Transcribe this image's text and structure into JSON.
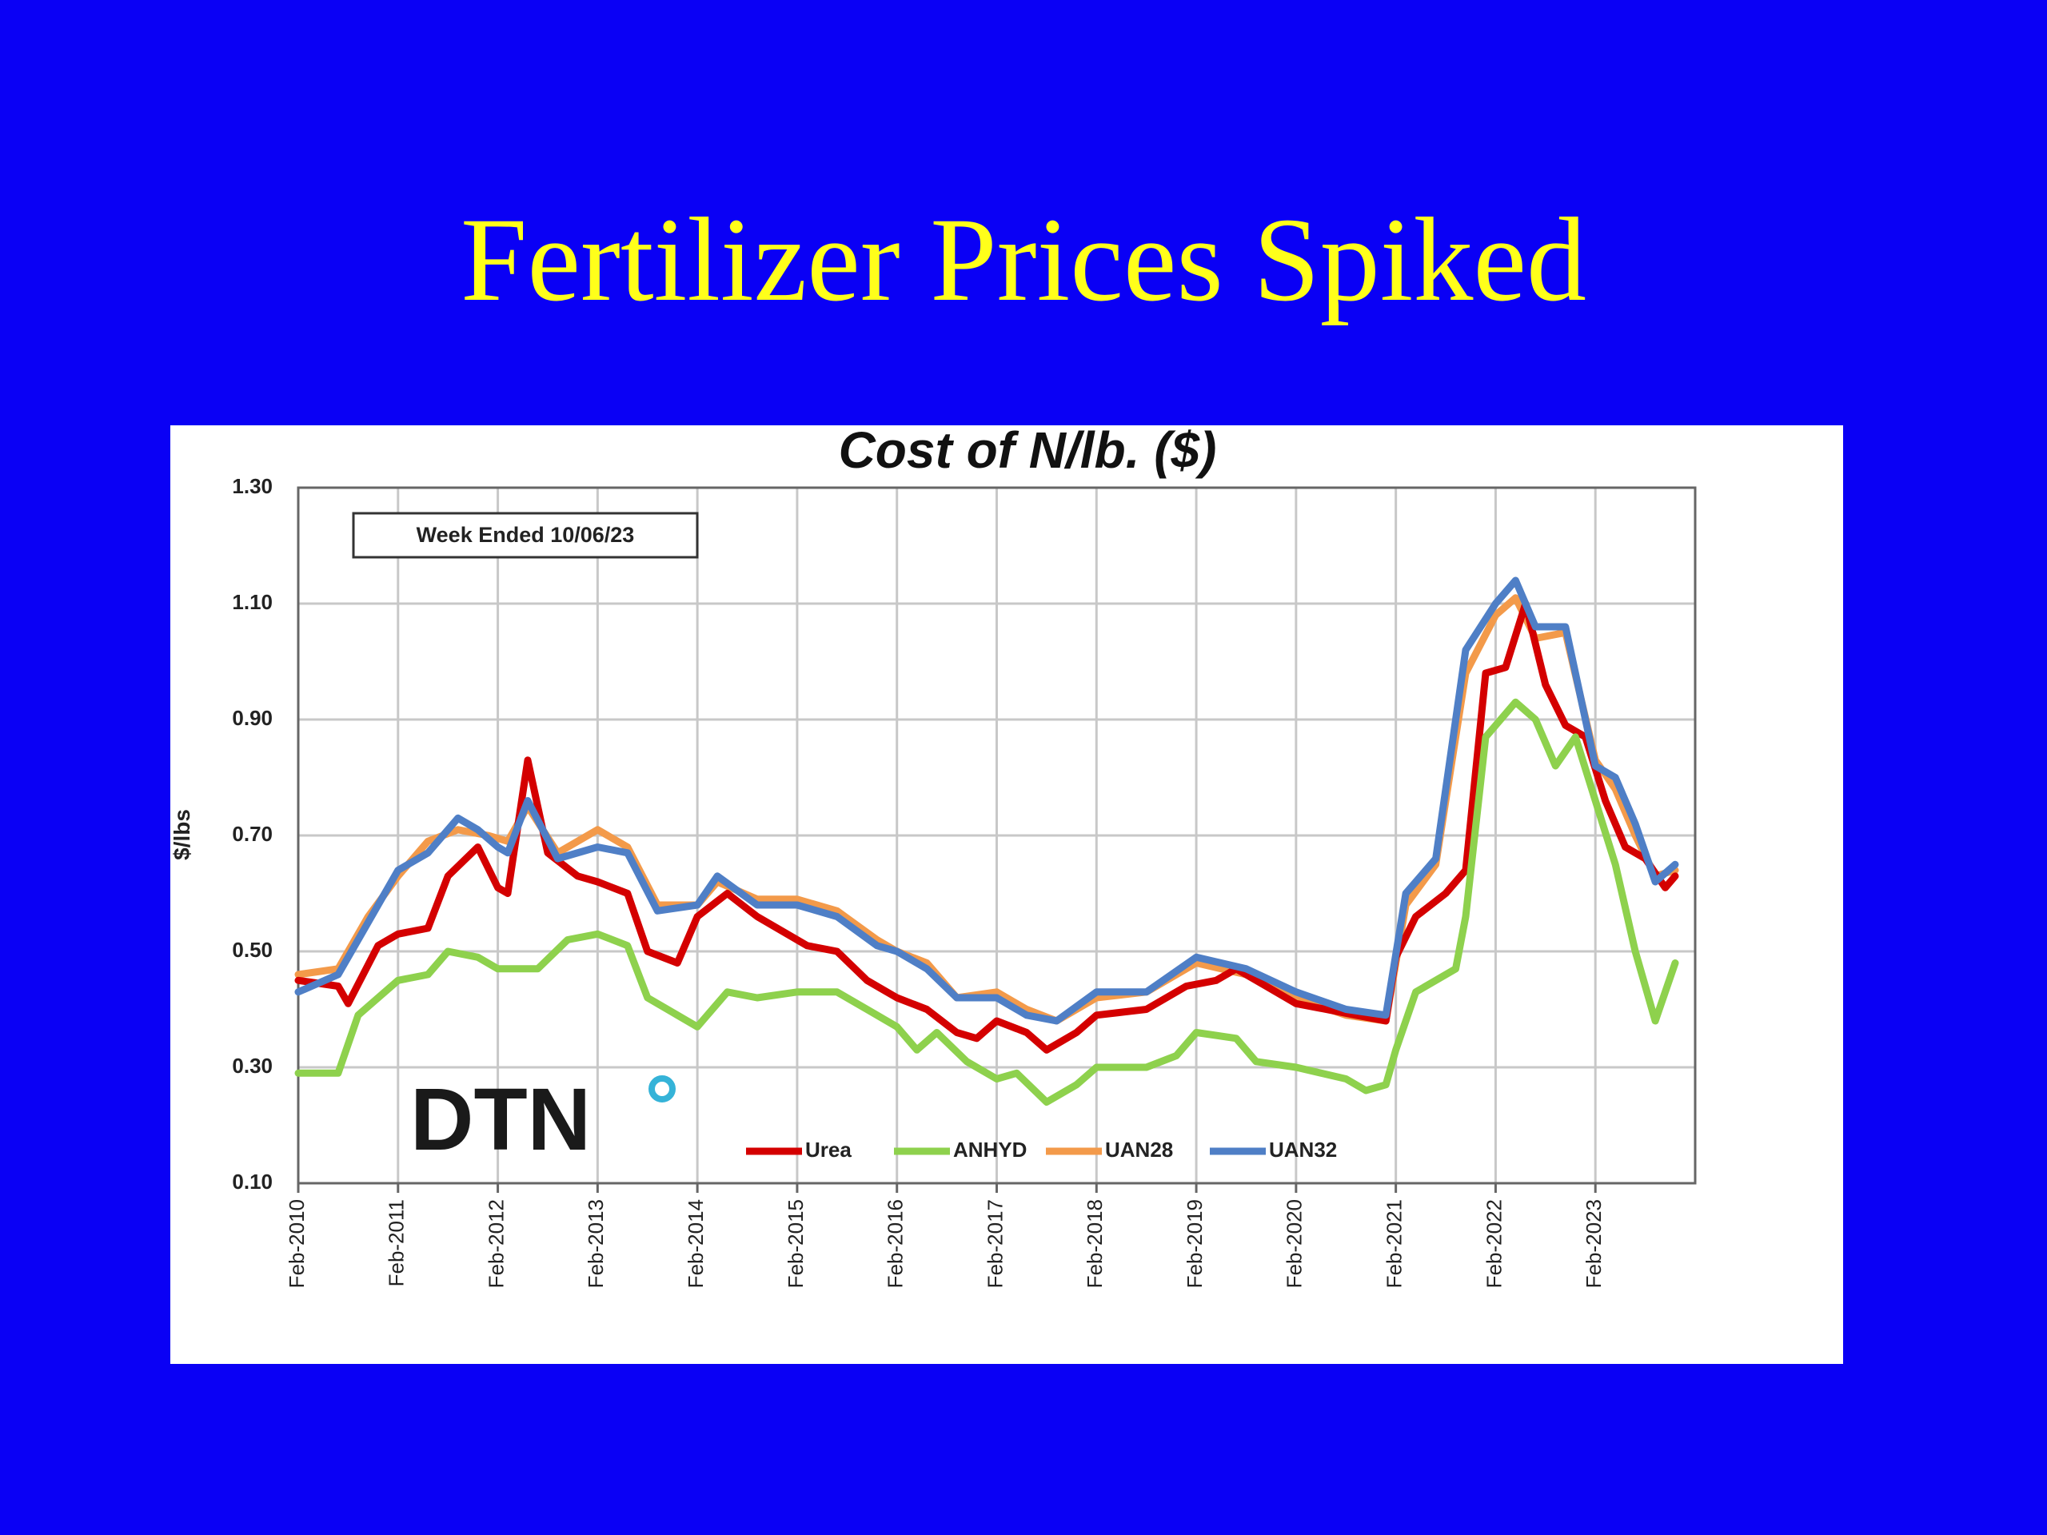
{
  "slide": {
    "title": "Fertilizer Prices Spiked",
    "background": "#0a00f5",
    "title_color": "#ffff1a"
  },
  "chart_data": {
    "type": "line",
    "title": "Cost of N/lb. ($)",
    "ylabel": "$/lbs",
    "xlabel": "",
    "ylim": [
      0.1,
      1.3
    ],
    "yticks": [
      "1.30",
      "1.10",
      "0.90",
      "0.70",
      "0.50",
      "0.30",
      "0.10"
    ],
    "xlim": [
      2010.0,
      2024.0
    ],
    "xticks": [
      "Feb-2010",
      "Feb-2011",
      "Feb-2012",
      "Feb-2013",
      "Feb-2014",
      "Feb-2015",
      "Feb-2016",
      "Feb-2017",
      "Feb-2018",
      "Feb-2019",
      "Feb-2020",
      "Feb-2021",
      "Feb-2022",
      "Feb-2023"
    ],
    "grid": true,
    "legend_position": "bottom-center",
    "annotation": "Week Ended 10/06/23",
    "logo": "DTN",
    "series": [
      {
        "name": "UAN28",
        "color": "#f39a4a",
        "points": [
          [
            2010.0,
            0.46
          ],
          [
            2010.4,
            0.47
          ],
          [
            2010.7,
            0.56
          ],
          [
            2011.0,
            0.63
          ],
          [
            2011.3,
            0.69
          ],
          [
            2011.6,
            0.71
          ],
          [
            2011.9,
            0.7
          ],
          [
            2012.1,
            0.69
          ],
          [
            2012.3,
            0.75
          ],
          [
            2012.6,
            0.67
          ],
          [
            2013.0,
            0.71
          ],
          [
            2013.3,
            0.68
          ],
          [
            2013.6,
            0.58
          ],
          [
            2014.0,
            0.58
          ],
          [
            2014.2,
            0.62
          ],
          [
            2014.6,
            0.59
          ],
          [
            2015.0,
            0.59
          ],
          [
            2015.4,
            0.57
          ],
          [
            2015.8,
            0.52
          ],
          [
            2016.0,
            0.5
          ],
          [
            2016.3,
            0.48
          ],
          [
            2016.6,
            0.42
          ],
          [
            2017.0,
            0.43
          ],
          [
            2017.3,
            0.4
          ],
          [
            2017.6,
            0.38
          ],
          [
            2018.0,
            0.42
          ],
          [
            2018.5,
            0.43
          ],
          [
            2019.0,
            0.48
          ],
          [
            2019.5,
            0.46
          ],
          [
            2020.0,
            0.42
          ],
          [
            2020.5,
            0.39
          ],
          [
            2020.9,
            0.38
          ],
          [
            2021.1,
            0.58
          ],
          [
            2021.4,
            0.65
          ],
          [
            2021.7,
            0.98
          ],
          [
            2022.0,
            1.08
          ],
          [
            2022.2,
            1.11
          ],
          [
            2022.4,
            1.04
          ],
          [
            2022.7,
            1.05
          ],
          [
            2023.0,
            0.83
          ],
          [
            2023.2,
            0.78
          ],
          [
            2023.4,
            0.7
          ],
          [
            2023.6,
            0.63
          ],
          [
            2023.8,
            0.64
          ]
        ]
      },
      {
        "name": "Urea",
        "color": "#d40000",
        "points": [
          [
            2010.0,
            0.45
          ],
          [
            2010.4,
            0.44
          ],
          [
            2010.5,
            0.41
          ],
          [
            2010.8,
            0.51
          ],
          [
            2011.0,
            0.53
          ],
          [
            2011.3,
            0.54
          ],
          [
            2011.5,
            0.63
          ],
          [
            2011.8,
            0.68
          ],
          [
            2012.0,
            0.61
          ],
          [
            2012.1,
            0.6
          ],
          [
            2012.3,
            0.83
          ],
          [
            2012.5,
            0.67
          ],
          [
            2012.8,
            0.63
          ],
          [
            2013.0,
            0.62
          ],
          [
            2013.3,
            0.6
          ],
          [
            2013.5,
            0.5
          ],
          [
            2013.8,
            0.48
          ],
          [
            2014.0,
            0.56
          ],
          [
            2014.3,
            0.6
          ],
          [
            2014.6,
            0.56
          ],
          [
            2014.9,
            0.53
          ],
          [
            2015.1,
            0.51
          ],
          [
            2015.4,
            0.5
          ],
          [
            2015.7,
            0.45
          ],
          [
            2016.0,
            0.42
          ],
          [
            2016.3,
            0.4
          ],
          [
            2016.6,
            0.36
          ],
          [
            2016.8,
            0.35
          ],
          [
            2017.0,
            0.38
          ],
          [
            2017.3,
            0.36
          ],
          [
            2017.5,
            0.33
          ],
          [
            2017.8,
            0.36
          ],
          [
            2018.0,
            0.39
          ],
          [
            2018.5,
            0.4
          ],
          [
            2018.9,
            0.44
          ],
          [
            2019.2,
            0.45
          ],
          [
            2019.4,
            0.47
          ],
          [
            2019.7,
            0.44
          ],
          [
            2020.0,
            0.41
          ],
          [
            2020.3,
            0.4
          ],
          [
            2020.6,
            0.39
          ],
          [
            2020.9,
            0.38
          ],
          [
            2021.0,
            0.49
          ],
          [
            2021.2,
            0.56
          ],
          [
            2021.5,
            0.6
          ],
          [
            2021.7,
            0.64
          ],
          [
            2021.9,
            0.98
          ],
          [
            2022.1,
            0.99
          ],
          [
            2022.3,
            1.1
          ],
          [
            2022.5,
            0.96
          ],
          [
            2022.7,
            0.89
          ],
          [
            2022.9,
            0.87
          ],
          [
            2023.1,
            0.76
          ],
          [
            2023.3,
            0.68
          ],
          [
            2023.5,
            0.66
          ],
          [
            2023.7,
            0.61
          ],
          [
            2023.8,
            0.63
          ]
        ]
      },
      {
        "name": "ANHYD",
        "color": "#8ed14d",
        "points": [
          [
            2010.0,
            0.29
          ],
          [
            2010.4,
            0.29
          ],
          [
            2010.6,
            0.39
          ],
          [
            2011.0,
            0.45
          ],
          [
            2011.3,
            0.46
          ],
          [
            2011.5,
            0.5
          ],
          [
            2011.8,
            0.49
          ],
          [
            2012.0,
            0.47
          ],
          [
            2012.4,
            0.47
          ],
          [
            2012.7,
            0.52
          ],
          [
            2013.0,
            0.53
          ],
          [
            2013.3,
            0.51
          ],
          [
            2013.5,
            0.42
          ],
          [
            2013.8,
            0.39
          ],
          [
            2014.0,
            0.37
          ],
          [
            2014.3,
            0.43
          ],
          [
            2014.6,
            0.42
          ],
          [
            2015.0,
            0.43
          ],
          [
            2015.4,
            0.43
          ],
          [
            2015.8,
            0.39
          ],
          [
            2016.0,
            0.37
          ],
          [
            2016.2,
            0.33
          ],
          [
            2016.4,
            0.36
          ],
          [
            2016.7,
            0.31
          ],
          [
            2017.0,
            0.28
          ],
          [
            2017.2,
            0.29
          ],
          [
            2017.5,
            0.24
          ],
          [
            2017.8,
            0.27
          ],
          [
            2018.0,
            0.3
          ],
          [
            2018.5,
            0.3
          ],
          [
            2018.8,
            0.32
          ],
          [
            2019.0,
            0.36
          ],
          [
            2019.4,
            0.35
          ],
          [
            2019.6,
            0.31
          ],
          [
            2020.0,
            0.3
          ],
          [
            2020.5,
            0.28
          ],
          [
            2020.7,
            0.26
          ],
          [
            2020.9,
            0.27
          ],
          [
            2021.0,
            0.33
          ],
          [
            2021.2,
            0.43
          ],
          [
            2021.6,
            0.47
          ],
          [
            2021.7,
            0.56
          ],
          [
            2021.9,
            0.87
          ],
          [
            2022.2,
            0.93
          ],
          [
            2022.4,
            0.9
          ],
          [
            2022.6,
            0.82
          ],
          [
            2022.8,
            0.87
          ],
          [
            2023.0,
            0.76
          ],
          [
            2023.2,
            0.65
          ],
          [
            2023.4,
            0.5
          ],
          [
            2023.5,
            0.44
          ],
          [
            2023.6,
            0.38
          ],
          [
            2023.8,
            0.48
          ]
        ]
      },
      {
        "name": "UAN32",
        "color": "#4f7fc6",
        "points": [
          [
            2010.0,
            0.43
          ],
          [
            2010.4,
            0.46
          ],
          [
            2010.6,
            0.52
          ],
          [
            2011.0,
            0.64
          ],
          [
            2011.3,
            0.67
          ],
          [
            2011.6,
            0.73
          ],
          [
            2011.8,
            0.71
          ],
          [
            2012.0,
            0.68
          ],
          [
            2012.1,
            0.67
          ],
          [
            2012.3,
            0.76
          ],
          [
            2012.6,
            0.66
          ],
          [
            2013.0,
            0.68
          ],
          [
            2013.3,
            0.67
          ],
          [
            2013.6,
            0.57
          ],
          [
            2014.0,
            0.58
          ],
          [
            2014.2,
            0.63
          ],
          [
            2014.6,
            0.58
          ],
          [
            2015.0,
            0.58
          ],
          [
            2015.4,
            0.56
          ],
          [
            2015.8,
            0.51
          ],
          [
            2016.0,
            0.5
          ],
          [
            2016.3,
            0.47
          ],
          [
            2016.6,
            0.42
          ],
          [
            2017.0,
            0.42
          ],
          [
            2017.3,
            0.39
          ],
          [
            2017.6,
            0.38
          ],
          [
            2018.0,
            0.43
          ],
          [
            2018.5,
            0.43
          ],
          [
            2019.0,
            0.49
          ],
          [
            2019.5,
            0.47
          ],
          [
            2020.0,
            0.43
          ],
          [
            2020.5,
            0.4
          ],
          [
            2020.9,
            0.39
          ],
          [
            2021.1,
            0.6
          ],
          [
            2021.4,
            0.66
          ],
          [
            2021.7,
            1.02
          ],
          [
            2022.0,
            1.1
          ],
          [
            2022.2,
            1.14
          ],
          [
            2022.4,
            1.06
          ],
          [
            2022.7,
            1.06
          ],
          [
            2023.0,
            0.82
          ],
          [
            2023.2,
            0.8
          ],
          [
            2023.4,
            0.72
          ],
          [
            2023.6,
            0.62
          ],
          [
            2023.8,
            0.65
          ]
        ]
      }
    ]
  }
}
